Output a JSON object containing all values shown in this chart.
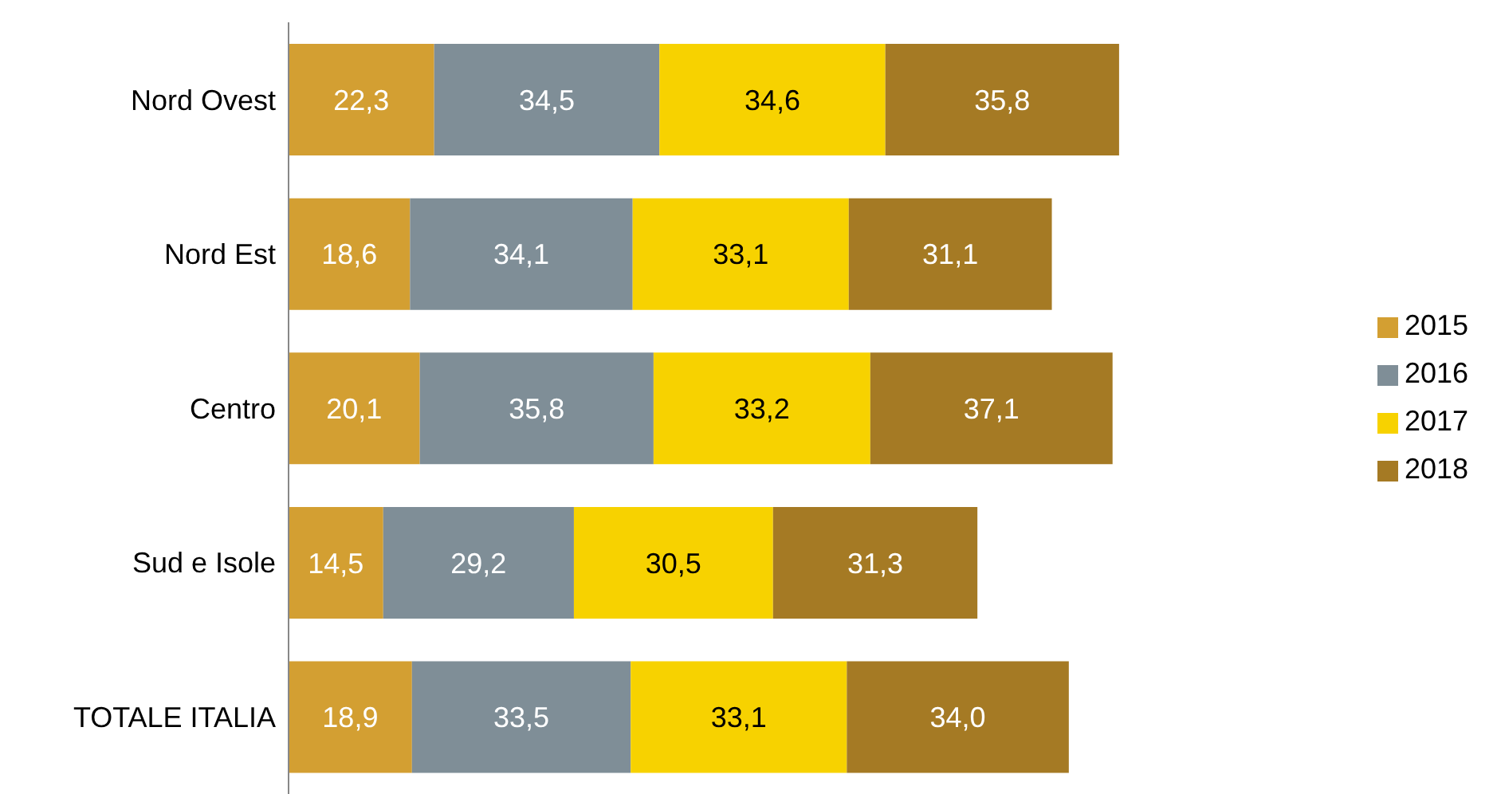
{
  "chart_data": {
    "type": "bar",
    "orientation": "horizontal",
    "stacked": true,
    "legend": "right",
    "grid": false,
    "categories": [
      "Nord Ovest",
      "Nord Est",
      "Centro",
      "Sud e Isole",
      "TOTALE ITALIA"
    ],
    "series": [
      {
        "name": "2015",
        "color": "#d39f32",
        "values": [
          22.3,
          18.6,
          20.1,
          14.5,
          18.9
        ],
        "value_labels": [
          "22,3",
          "18,6",
          "20,1",
          "14,5",
          "18,9"
        ]
      },
      {
        "name": "2016",
        "color": "#7f8e97",
        "values": [
          34.5,
          34.1,
          35.8,
          29.2,
          33.5
        ],
        "value_labels": [
          "34,5",
          "34,1",
          "35,8",
          "29,2",
          "33,5"
        ]
      },
      {
        "name": "2017",
        "color": "#f7d200",
        "values": [
          34.6,
          33.1,
          33.2,
          30.5,
          33.1
        ],
        "value_labels": [
          "34,6",
          "33,1",
          "33,2",
          "30,5",
          "33,1"
        ]
      },
      {
        "name": "2018",
        "color": "#a57a24",
        "values": [
          35.8,
          31.1,
          37.1,
          31.3,
          34.0
        ],
        "value_labels": [
          "35,8",
          "31,1",
          "37,1",
          "31,3",
          "34,0"
        ]
      }
    ]
  }
}
